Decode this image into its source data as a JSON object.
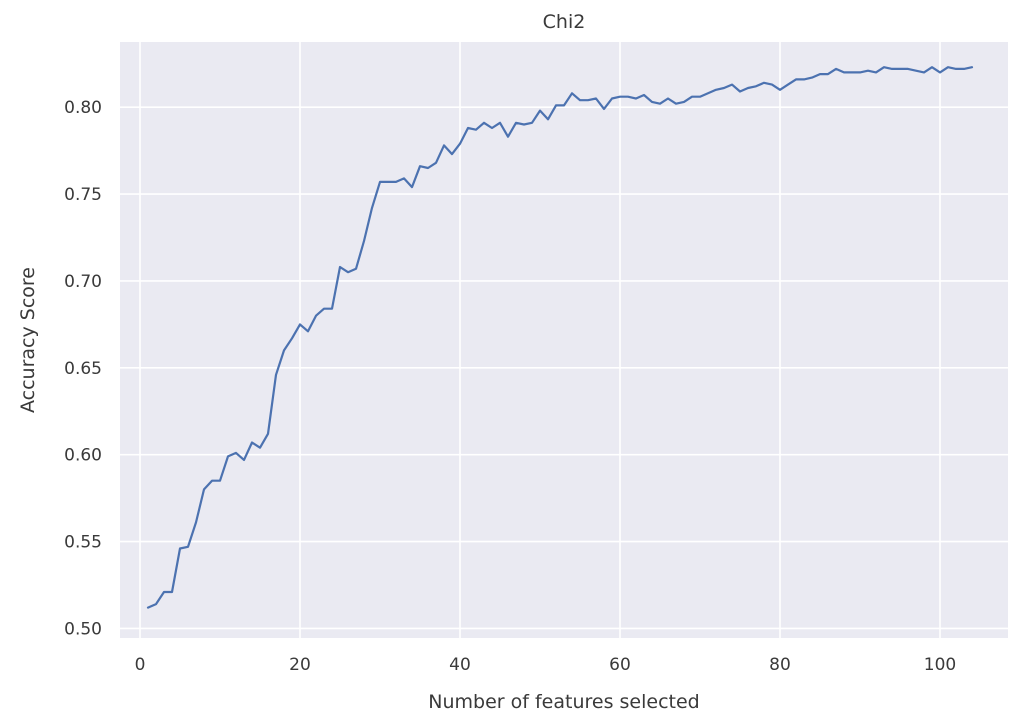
{
  "chart_data": {
    "type": "line",
    "title": "Chi2",
    "xlabel": "Number of features selected",
    "ylabel": "Accuracy Score",
    "xlim": [
      -2.5,
      108.5
    ],
    "ylim": [
      0.4945,
      0.8375
    ],
    "xticks": [
      0,
      20,
      40,
      60,
      80,
      100
    ],
    "yticks": [
      0.5,
      0.55,
      0.6,
      0.65,
      0.7,
      0.75,
      0.8
    ],
    "ytick_labels": [
      "0.50",
      "0.55",
      "0.60",
      "0.65",
      "0.70",
      "0.75",
      "0.80"
    ],
    "grid": true,
    "background_color": "#eaeaf2",
    "grid_color": "#ffffff",
    "line_color": "#4c72b0",
    "series": [
      {
        "x": [
          1,
          2,
          3,
          4,
          5,
          6,
          7,
          8,
          9,
          10,
          11,
          12,
          13,
          14,
          15,
          16,
          17,
          18,
          19,
          20,
          21,
          22,
          23,
          24,
          25,
          26,
          27,
          28,
          29,
          30,
          31,
          32,
          33,
          34,
          35,
          36,
          37,
          38,
          39,
          40,
          41,
          42,
          43,
          44,
          45,
          46,
          47,
          48,
          49,
          50,
          51,
          52,
          53,
          54,
          55,
          56,
          57,
          58,
          59,
          60,
          61,
          62,
          63,
          64,
          65,
          66,
          67,
          68,
          69,
          70,
          71,
          72,
          73,
          74,
          75,
          76,
          77,
          78,
          79,
          80,
          81,
          82,
          83,
          84,
          85,
          86,
          87,
          88,
          89,
          90,
          91,
          92,
          93,
          94,
          95,
          96,
          97,
          98,
          99,
          100,
          101,
          102,
          103,
          104
        ],
        "y": [
          0.512,
          0.514,
          0.521,
          0.521,
          0.546,
          0.547,
          0.561,
          0.58,
          0.585,
          0.585,
          0.599,
          0.601,
          0.597,
          0.607,
          0.604,
          0.612,
          0.646,
          0.66,
          0.667,
          0.675,
          0.671,
          0.68,
          0.684,
          0.684,
          0.708,
          0.705,
          0.707,
          0.723,
          0.742,
          0.757,
          0.757,
          0.757,
          0.759,
          0.754,
          0.766,
          0.765,
          0.768,
          0.778,
          0.773,
          0.779,
          0.788,
          0.787,
          0.791,
          0.788,
          0.791,
          0.783,
          0.791,
          0.79,
          0.791,
          0.798,
          0.793,
          0.801,
          0.801,
          0.808,
          0.804,
          0.804,
          0.805,
          0.799,
          0.805,
          0.806,
          0.806,
          0.805,
          0.807,
          0.803,
          0.802,
          0.805,
          0.802,
          0.803,
          0.806,
          0.806,
          0.808,
          0.81,
          0.811,
          0.813,
          0.809,
          0.811,
          0.812,
          0.814,
          0.813,
          0.81,
          0.813,
          0.816,
          0.816,
          0.817,
          0.819,
          0.819,
          0.822,
          0.82,
          0.82,
          0.82,
          0.821,
          0.82,
          0.823,
          0.822,
          0.822,
          0.822,
          0.821,
          0.82,
          0.823,
          0.82,
          0.823,
          0.822,
          0.822,
          0.823
        ]
      }
    ]
  }
}
